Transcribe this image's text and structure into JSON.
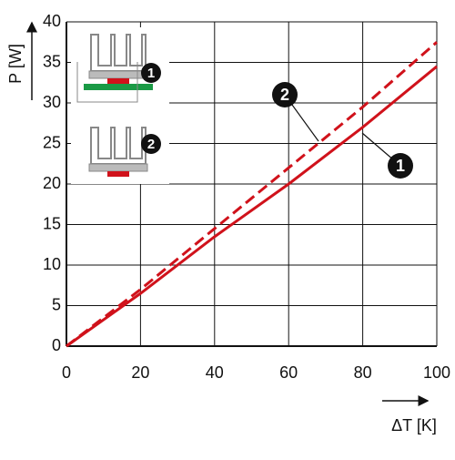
{
  "chart_data": {
    "type": "line",
    "x": [
      0,
      20,
      40,
      60,
      80,
      100
    ],
    "series": [
      {
        "name": "1",
        "color": "#d0121b",
        "dash": false,
        "values": [
          0,
          6.5,
          13.5,
          20,
          27,
          34.5
        ]
      },
      {
        "name": "2",
        "color": "#d0121b",
        "dash": true,
        "values": [
          0,
          7,
          14.5,
          22,
          29.5,
          37.5
        ]
      }
    ],
    "xlim": [
      0,
      100
    ],
    "xticks": [
      0,
      20,
      40,
      60,
      80,
      100
    ],
    "ylim": [
      0,
      40
    ],
    "yticks": [
      0,
      5,
      10,
      15,
      20,
      25,
      30,
      35,
      40
    ],
    "x_label": "ΔT [K]",
    "y_label": "P [W]",
    "grid": true,
    "inset_labels": [
      "1",
      "2"
    ]
  }
}
